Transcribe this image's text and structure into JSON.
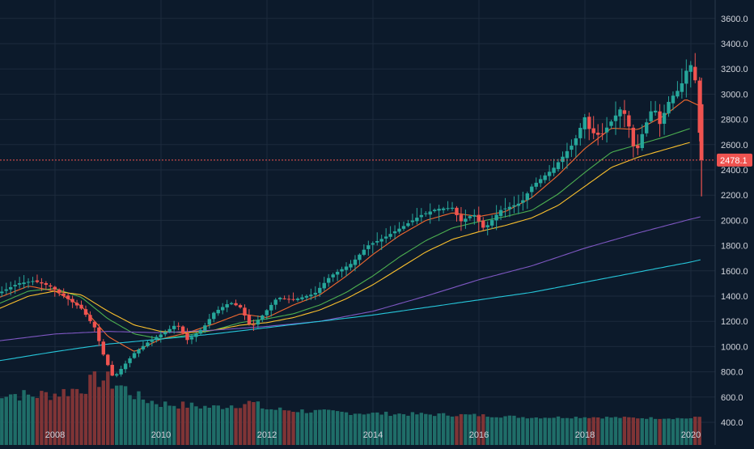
{
  "chart_data": {
    "type": "candlestick",
    "interval": "monthly",
    "y_axis_position": "right",
    "y_ticks": [
      "400.0",
      "600.0",
      "800.0",
      "1000.0",
      "1200.0",
      "1400.0",
      "1600.0",
      "1800.0",
      "2000.0",
      "2200.0",
      "2400.0",
      "2600.0",
      "2800.0",
      "3000.0",
      "3200.0",
      "3400.0",
      "3600.0"
    ],
    "x_ticks": [
      "2008",
      "2010",
      "2012",
      "2014",
      "2016",
      "2018",
      "2020"
    ],
    "last_price": 2478.1,
    "last_price_label": "2478.1",
    "grid": true,
    "colors": {
      "background": "#0c1a2b",
      "grid": "#1c2b3c",
      "up": "#26a69a",
      "down": "#ef5350",
      "up_volume": "#1f6d68",
      "down_volume": "#7f3436",
      "ma_fast": "#f2692f",
      "ma_mid": "#4caf50",
      "ma_slow": "#fbc02d",
      "ma_long": "#7e57c2",
      "ma_longest": "#26c6da",
      "axis_text": "#d1d4dc"
    },
    "price_anchors": [
      [
        2006.83,
        1400
      ],
      [
        2007.3,
        1500
      ],
      [
        2007.6,
        1520
      ],
      [
        2007.9,
        1480
      ],
      [
        2008.2,
        1390
      ],
      [
        2008.5,
        1300
      ],
      [
        2008.75,
        1150
      ],
      [
        2008.9,
        950
      ],
      [
        2009.1,
        750
      ],
      [
        2009.3,
        850
      ],
      [
        2009.5,
        950
      ],
      [
        2009.8,
        1050
      ],
      [
        2010.1,
        1120
      ],
      [
        2010.3,
        1180
      ],
      [
        2010.5,
        1050
      ],
      [
        2010.8,
        1150
      ],
      [
        2011.0,
        1270
      ],
      [
        2011.3,
        1350
      ],
      [
        2011.5,
        1310
      ],
      [
        2011.7,
        1150
      ],
      [
        2011.9,
        1240
      ],
      [
        2012.2,
        1390
      ],
      [
        2012.5,
        1370
      ],
      [
        2012.9,
        1420
      ],
      [
        2013.2,
        1560
      ],
      [
        2013.6,
        1660
      ],
      [
        2013.9,
        1800
      ],
      [
        2014.2,
        1860
      ],
      [
        2014.6,
        1960
      ],
      [
        2014.9,
        2040
      ],
      [
        2015.2,
        2090
      ],
      [
        2015.5,
        2100
      ],
      [
        2015.65,
        1990
      ],
      [
        2015.9,
        2050
      ],
      [
        2016.1,
        1930
      ],
      [
        2016.4,
        2080
      ],
      [
        2016.8,
        2140
      ],
      [
        2017.0,
        2270
      ],
      [
        2017.4,
        2410
      ],
      [
        2017.8,
        2620
      ],
      [
        2018.0,
        2820
      ],
      [
        2018.1,
        2700
      ],
      [
        2018.3,
        2670
      ],
      [
        2018.7,
        2900
      ],
      [
        2018.85,
        2720
      ],
      [
        2018.95,
        2510
      ],
      [
        2019.1,
        2710
      ],
      [
        2019.3,
        2920
      ],
      [
        2019.4,
        2750
      ],
      [
        2019.6,
        2960
      ],
      [
        2019.8,
        3050
      ],
      [
        2019.95,
        3230
      ],
      [
        2020.05,
        3230
      ],
      [
        2020.12,
        2950
      ],
      [
        2020.2,
        2478.1
      ]
    ],
    "moving_average_anchors": {
      "ma_fast": [
        [
          2006.83,
          1370
        ],
        [
          2007.5,
          1480
        ],
        [
          2008.0,
          1440
        ],
        [
          2008.5,
          1320
        ],
        [
          2009.0,
          1080
        ],
        [
          2009.5,
          960
        ],
        [
          2010.0,
          1060
        ],
        [
          2010.5,
          1110
        ],
        [
          2011.0,
          1180
        ],
        [
          2011.5,
          1260
        ],
        [
          2012.0,
          1230
        ],
        [
          2012.5,
          1330
        ],
        [
          2013.0,
          1410
        ],
        [
          2013.5,
          1560
        ],
        [
          2014.0,
          1730
        ],
        [
          2014.5,
          1880
        ],
        [
          2015.0,
          2000
        ],
        [
          2015.5,
          2060
        ],
        [
          2016.0,
          2030
        ],
        [
          2016.5,
          2070
        ],
        [
          2017.0,
          2180
        ],
        [
          2017.5,
          2360
        ],
        [
          2018.0,
          2570
        ],
        [
          2018.5,
          2730
        ],
        [
          2019.0,
          2720
        ],
        [
          2019.5,
          2830
        ],
        [
          2019.9,
          2960
        ],
        [
          2020.2,
          2900
        ]
      ],
      "ma_mid": [
        [
          2006.83,
          1320
        ],
        [
          2007.5,
          1440
        ],
        [
          2008.0,
          1460
        ],
        [
          2008.5,
          1390
        ],
        [
          2009.0,
          1220
        ],
        [
          2009.5,
          1100
        ],
        [
          2010.0,
          1060
        ],
        [
          2010.5,
          1090
        ],
        [
          2011.0,
          1130
        ],
        [
          2011.5,
          1190
        ],
        [
          2012.0,
          1220
        ],
        [
          2012.5,
          1260
        ],
        [
          2013.0,
          1330
        ],
        [
          2013.5,
          1430
        ],
        [
          2014.0,
          1560
        ],
        [
          2014.5,
          1710
        ],
        [
          2015.0,
          1840
        ],
        [
          2015.5,
          1940
        ],
        [
          2016.0,
          1990
        ],
        [
          2016.5,
          2030
        ],
        [
          2017.0,
          2080
        ],
        [
          2017.5,
          2210
        ],
        [
          2018.0,
          2380
        ],
        [
          2018.5,
          2540
        ],
        [
          2019.0,
          2600
        ],
        [
          2019.5,
          2660
        ],
        [
          2020.0,
          2730
        ]
      ],
      "ma_slow": [
        [
          2006.83,
          1280
        ],
        [
          2007.5,
          1400
        ],
        [
          2008.0,
          1440
        ],
        [
          2008.5,
          1410
        ],
        [
          2009.0,
          1280
        ],
        [
          2009.5,
          1170
        ],
        [
          2010.0,
          1120
        ],
        [
          2010.5,
          1110
        ],
        [
          2011.0,
          1130
        ],
        [
          2011.5,
          1170
        ],
        [
          2012.0,
          1190
        ],
        [
          2012.5,
          1230
        ],
        [
          2013.0,
          1290
        ],
        [
          2013.5,
          1380
        ],
        [
          2014.0,
          1490
        ],
        [
          2014.5,
          1620
        ],
        [
          2015.0,
          1750
        ],
        [
          2015.5,
          1850
        ],
        [
          2016.0,
          1910
        ],
        [
          2016.5,
          1960
        ],
        [
          2017.0,
          2020
        ],
        [
          2017.5,
          2120
        ],
        [
          2018.0,
          2270
        ],
        [
          2018.5,
          2420
        ],
        [
          2019.0,
          2500
        ],
        [
          2019.5,
          2560
        ],
        [
          2020.0,
          2620
        ]
      ],
      "ma_long": [
        [
          2006.83,
          1040
        ],
        [
          2008.0,
          1100
        ],
        [
          2009.0,
          1120
        ],
        [
          2010.0,
          1110
        ],
        [
          2011.0,
          1130
        ],
        [
          2012.0,
          1160
        ],
        [
          2013.0,
          1200
        ],
        [
          2014.0,
          1280
        ],
        [
          2015.0,
          1400
        ],
        [
          2016.0,
          1530
        ],
        [
          2017.0,
          1640
        ],
        [
          2018.0,
          1780
        ],
        [
          2019.0,
          1900
        ],
        [
          2020.0,
          2010
        ],
        [
          2020.2,
          2030
        ]
      ],
      "ma_longest": [
        [
          2006.83,
          880
        ],
        [
          2008.0,
          960
        ],
        [
          2009.0,
          1020
        ],
        [
          2010.0,
          1060
        ],
        [
          2011.0,
          1100
        ],
        [
          2012.0,
          1150
        ],
        [
          2013.0,
          1200
        ],
        [
          2014.0,
          1250
        ],
        [
          2015.0,
          1310
        ],
        [
          2016.0,
          1370
        ],
        [
          2017.0,
          1430
        ],
        [
          2018.0,
          1510
        ],
        [
          2019.0,
          1590
        ],
        [
          2020.0,
          1670
        ],
        [
          2020.2,
          1690
        ]
      ]
    },
    "volume_anchors": [
      [
        2006.83,
        700
      ],
      [
        2007.5,
        600
      ],
      [
        2008.0,
        650
      ],
      [
        2008.5,
        780
      ],
      [
        2008.85,
        1000
      ],
      [
        2009.2,
        850
      ],
      [
        2009.6,
        550
      ],
      [
        2010.0,
        420
      ],
      [
        2010.5,
        380
      ],
      [
        2011.0,
        340
      ],
      [
        2011.7,
        450
      ],
      [
        2012.0,
        300
      ],
      [
        2013.0,
        240
      ],
      [
        2014.0,
        200
      ],
      [
        2015.0,
        180
      ],
      [
        2016.0,
        160
      ],
      [
        2017.0,
        110
      ],
      [
        2018.0,
        120
      ],
      [
        2019.0,
        100
      ],
      [
        2020.0,
        90
      ],
      [
        2020.2,
        130
      ]
    ]
  }
}
